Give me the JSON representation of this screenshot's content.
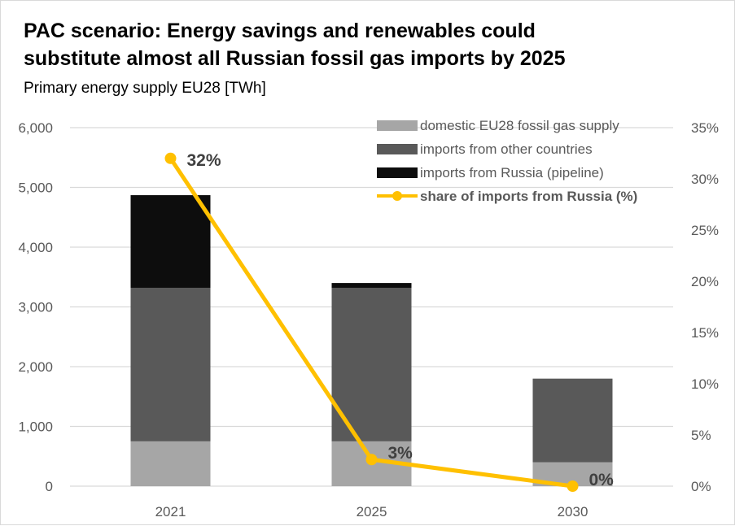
{
  "chart_data": {
    "type": "bar",
    "title_lines": [
      "PAC scenario: Energy savings and renewables could",
      "substitute almost all Russian fossil gas imports by 2025"
    ],
    "subtitle": "Primary energy supply EU28 [TWh]",
    "categories": [
      "2021",
      "2025",
      "2030"
    ],
    "stacked": true,
    "y_left": {
      "min": 0,
      "max": 6000,
      "ticks": [
        "0",
        "1,000",
        "2,000",
        "3,000",
        "4,000",
        "5,000",
        "6,000"
      ]
    },
    "y_right": {
      "min": 0,
      "max": 35,
      "ticks": [
        "0%",
        "5%",
        "10%",
        "15%",
        "20%",
        "25%",
        "30%",
        "35%"
      ]
    },
    "grid": true,
    "legend_position": "top-right",
    "series": [
      {
        "name": "domestic EU28 fossil gas supply",
        "type": "bar",
        "axis": "left",
        "color": "#a6a6a6",
        "values": [
          750,
          750,
          400
        ]
      },
      {
        "name": "imports from other countries",
        "type": "bar",
        "axis": "left",
        "color": "#595959",
        "values": [
          2570,
          2570,
          1400
        ]
      },
      {
        "name": "imports from Russia (pipeline)",
        "type": "bar",
        "axis": "left",
        "color": "#0d0d0d",
        "values": [
          1550,
          80,
          0
        ]
      },
      {
        "name": "share of imports from Russia (%)",
        "type": "line",
        "axis": "right",
        "color": "#ffc000",
        "values": [
          32,
          2.6,
          0
        ],
        "labels": [
          "32%",
          "3%",
          "0%"
        ]
      }
    ]
  }
}
